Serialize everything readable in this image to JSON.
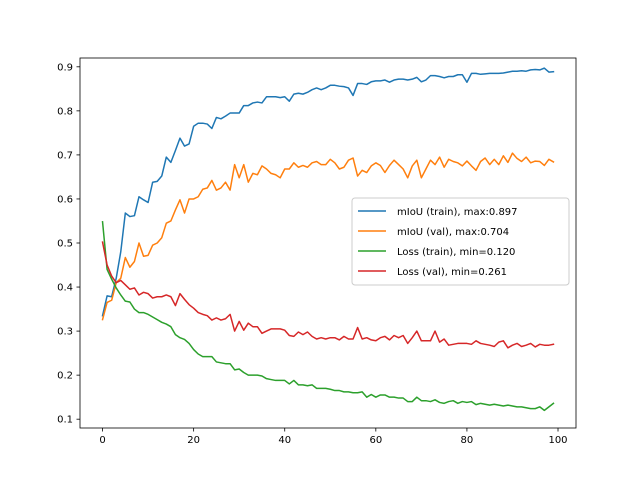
{
  "chart_data": {
    "type": "line",
    "title": "",
    "xlabel": "",
    "ylabel": "",
    "xlim": [
      -4.95,
      103.95
    ],
    "ylim": [
      0.08,
      0.92
    ],
    "xticks": [
      0,
      20,
      40,
      60,
      80,
      100
    ],
    "yticks": [
      0.1,
      0.2,
      0.3,
      0.4,
      0.5,
      0.6,
      0.7,
      0.8,
      0.9
    ],
    "xtick_labels": [
      "0",
      "20",
      "40",
      "60",
      "80",
      "100"
    ],
    "ytick_labels": [
      "0.1",
      "0.2",
      "0.3",
      "0.4",
      "0.5",
      "0.6",
      "0.7",
      "0.8",
      "0.9"
    ],
    "grid": false,
    "legend_position": "center-right",
    "x": [
      0,
      1,
      2,
      3,
      4,
      5,
      6,
      7,
      8,
      9,
      10,
      11,
      12,
      13,
      14,
      15,
      16,
      17,
      18,
      19,
      20,
      21,
      22,
      23,
      24,
      25,
      26,
      27,
      28,
      29,
      30,
      31,
      32,
      33,
      34,
      35,
      36,
      37,
      38,
      39,
      40,
      41,
      42,
      43,
      44,
      45,
      46,
      47,
      48,
      49,
      50,
      51,
      52,
      53,
      54,
      55,
      56,
      57,
      58,
      59,
      60,
      61,
      62,
      63,
      64,
      65,
      66,
      67,
      68,
      69,
      70,
      71,
      72,
      73,
      74,
      75,
      76,
      77,
      78,
      79,
      80,
      81,
      82,
      83,
      84,
      85,
      86,
      87,
      88,
      89,
      90,
      91,
      92,
      93,
      94,
      95,
      96,
      97,
      98,
      99
    ],
    "series": [
      {
        "name": "mIoU (train), max:0.897",
        "color": "#1f77b4",
        "values": [
          0.335,
          0.38,
          0.378,
          0.42,
          0.48,
          0.568,
          0.56,
          0.562,
          0.605,
          0.598,
          0.592,
          0.638,
          0.64,
          0.652,
          0.695,
          0.683,
          0.71,
          0.738,
          0.72,
          0.725,
          0.765,
          0.772,
          0.772,
          0.77,
          0.76,
          0.785,
          0.782,
          0.788,
          0.795,
          0.795,
          0.795,
          0.812,
          0.812,
          0.818,
          0.82,
          0.818,
          0.832,
          0.832,
          0.832,
          0.83,
          0.832,
          0.822,
          0.838,
          0.84,
          0.838,
          0.842,
          0.848,
          0.852,
          0.848,
          0.852,
          0.858,
          0.858,
          0.856,
          0.855,
          0.852,
          0.835,
          0.862,
          0.862,
          0.86,
          0.866,
          0.868,
          0.868,
          0.87,
          0.865,
          0.87,
          0.872,
          0.872,
          0.87,
          0.872,
          0.876,
          0.866,
          0.87,
          0.88,
          0.88,
          0.878,
          0.875,
          0.878,
          0.878,
          0.882,
          0.882,
          0.865,
          0.885,
          0.885,
          0.883,
          0.884,
          0.885,
          0.885,
          0.885,
          0.886,
          0.888,
          0.89,
          0.89,
          0.891,
          0.89,
          0.893,
          0.894,
          0.893,
          0.897,
          0.888,
          0.889
        ]
      },
      {
        "name": "mIoU (val), max:0.704",
        "color": "#ff7f0e",
        "values": [
          0.326,
          0.365,
          0.37,
          0.41,
          0.42,
          0.467,
          0.445,
          0.458,
          0.5,
          0.47,
          0.472,
          0.495,
          0.5,
          0.512,
          0.545,
          0.55,
          0.575,
          0.598,
          0.568,
          0.6,
          0.6,
          0.605,
          0.622,
          0.625,
          0.642,
          0.62,
          0.625,
          0.638,
          0.62,
          0.678,
          0.648,
          0.678,
          0.638,
          0.658,
          0.655,
          0.675,
          0.668,
          0.658,
          0.655,
          0.648,
          0.668,
          0.668,
          0.682,
          0.672,
          0.676,
          0.672,
          0.682,
          0.685,
          0.678,
          0.678,
          0.69,
          0.682,
          0.668,
          0.672,
          0.688,
          0.693,
          0.652,
          0.665,
          0.66,
          0.675,
          0.682,
          0.676,
          0.66,
          0.676,
          0.688,
          0.678,
          0.668,
          0.648,
          0.675,
          0.688,
          0.648,
          0.668,
          0.688,
          0.678,
          0.695,
          0.672,
          0.69,
          0.685,
          0.682,
          0.675,
          0.686,
          0.675,
          0.665,
          0.685,
          0.693,
          0.678,
          0.69,
          0.678,
          0.698,
          0.683,
          0.704,
          0.692,
          0.685,
          0.695,
          0.682,
          0.686,
          0.685,
          0.676,
          0.69,
          0.684
        ]
      },
      {
        "name": "Loss (train), min=0.120",
        "color": "#2ca02c",
        "values": [
          0.548,
          0.44,
          0.418,
          0.398,
          0.382,
          0.368,
          0.366,
          0.35,
          0.342,
          0.342,
          0.338,
          0.332,
          0.326,
          0.32,
          0.316,
          0.31,
          0.292,
          0.285,
          0.281,
          0.272,
          0.258,
          0.248,
          0.242,
          0.242,
          0.242,
          0.23,
          0.228,
          0.226,
          0.226,
          0.212,
          0.214,
          0.206,
          0.2,
          0.2,
          0.2,
          0.198,
          0.192,
          0.19,
          0.188,
          0.188,
          0.188,
          0.18,
          0.188,
          0.178,
          0.178,
          0.176,
          0.178,
          0.17,
          0.17,
          0.17,
          0.168,
          0.165,
          0.165,
          0.162,
          0.162,
          0.16,
          0.16,
          0.162,
          0.15,
          0.156,
          0.15,
          0.155,
          0.155,
          0.15,
          0.15,
          0.148,
          0.148,
          0.14,
          0.14,
          0.15,
          0.142,
          0.142,
          0.14,
          0.144,
          0.138,
          0.136,
          0.14,
          0.142,
          0.136,
          0.14,
          0.138,
          0.14,
          0.133,
          0.136,
          0.134,
          0.132,
          0.134,
          0.132,
          0.13,
          0.132,
          0.13,
          0.128,
          0.128,
          0.126,
          0.124,
          0.124,
          0.128,
          0.12,
          0.128,
          0.136
        ]
      },
      {
        "name": "Loss (val), min=0.261",
        "color": "#d62728",
        "values": [
          0.502,
          0.45,
          0.425,
          0.41,
          0.415,
          0.405,
          0.395,
          0.398,
          0.382,
          0.388,
          0.385,
          0.375,
          0.378,
          0.378,
          0.382,
          0.378,
          0.358,
          0.385,
          0.372,
          0.36,
          0.352,
          0.342,
          0.338,
          0.335,
          0.325,
          0.33,
          0.325,
          0.328,
          0.338,
          0.3,
          0.322,
          0.302,
          0.318,
          0.31,
          0.31,
          0.295,
          0.3,
          0.305,
          0.305,
          0.305,
          0.302,
          0.29,
          0.288,
          0.298,
          0.292,
          0.298,
          0.288,
          0.282,
          0.285,
          0.282,
          0.285,
          0.285,
          0.28,
          0.288,
          0.282,
          0.282,
          0.308,
          0.282,
          0.285,
          0.28,
          0.278,
          0.285,
          0.288,
          0.28,
          0.29,
          0.285,
          0.29,
          0.272,
          0.285,
          0.3,
          0.278,
          0.278,
          0.278,
          0.3,
          0.275,
          0.282,
          0.268,
          0.27,
          0.272,
          0.272,
          0.272,
          0.27,
          0.278,
          0.272,
          0.27,
          0.268,
          0.265,
          0.275,
          0.278,
          0.262,
          0.268,
          0.272,
          0.265,
          0.268,
          0.272,
          0.264,
          0.27,
          0.268,
          0.268,
          0.27
        ]
      }
    ]
  }
}
